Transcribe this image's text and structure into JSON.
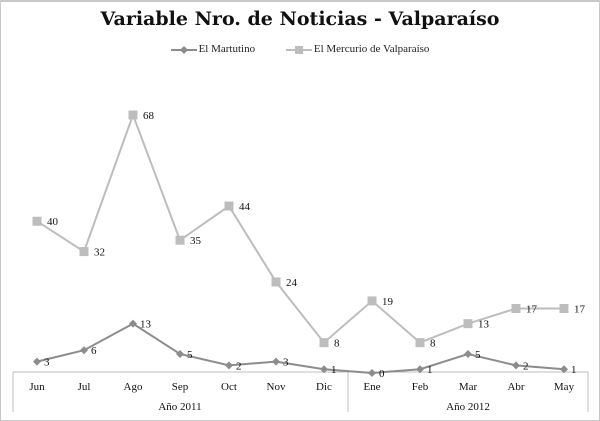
{
  "chart_data": {
    "type": "line",
    "title": "Variable Nro. de Noticias - Valparaíso",
    "categories": [
      "Jun",
      "Jul",
      "Ago",
      "Sep",
      "Oct",
      "Nov",
      "Dic",
      "Ene",
      "Feb",
      "Mar",
      "Abr",
      "May"
    ],
    "category_groups": [
      {
        "label": "Año 2011",
        "months": [
          "Jun",
          "Jul",
          "Ago",
          "Sep",
          "Oct",
          "Nov",
          "Dic"
        ]
      },
      {
        "label": "Año 2012",
        "months": [
          "Ene",
          "Feb",
          "Mar",
          "Abr",
          "May"
        ]
      }
    ],
    "series": [
      {
        "name": "El Martutino",
        "marker": "diamond",
        "color": "#8c8c8c",
        "values": [
          3,
          6,
          13,
          5,
          2,
          3,
          1,
          0,
          1,
          5,
          2,
          1
        ]
      },
      {
        "name": "El Mercurio de Valparaíso",
        "marker": "square",
        "color": "#bdbdbd",
        "values": [
          40,
          32,
          68,
          35,
          44,
          24,
          8,
          19,
          8,
          13,
          17,
          17
        ]
      }
    ],
    "xlabel": "",
    "ylabel": "",
    "ylim": [
      0,
      68
    ],
    "grid": false,
    "legend_position": "top",
    "data_labels": true
  },
  "title": "Variable Nro. de Noticias - Valparaíso",
  "legend": [
    {
      "label": "El Martutino"
    },
    {
      "label": "El Mercurio de Valparaíso"
    }
  ]
}
